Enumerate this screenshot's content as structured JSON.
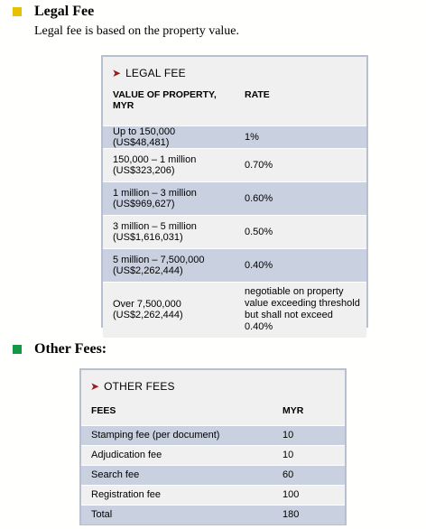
{
  "legal_section": {
    "heading": "Legal Fee",
    "bullet_color": "#e8c000",
    "intro": "Legal fee is based on the property value.",
    "table": {
      "title": "LEGAL FEE",
      "col1_header": "VALUE OF PROPERTY, MYR",
      "col2_header": "RATE",
      "rows": [
        {
          "value": "Up to 150,000 (US$48,481)",
          "rate": "1%"
        },
        {
          "value": "150,000 – 1 million (US$323,206)",
          "rate": "0.70%"
        },
        {
          "value": "1 million – 3 million (US$969,627)",
          "rate": "0.60%"
        },
        {
          "value": "3 million – 5 million (US$1,616,031)",
          "rate": "0.50%"
        },
        {
          "value": "5 million – 7,500,000 (US$2,262,444)",
          "rate": "0.40%"
        },
        {
          "value": "Over 7,500,000 (US$2,262,444)",
          "rate": "negotiable on property value exceeding threshold but shall not exceed 0.40%"
        }
      ]
    }
  },
  "other_section": {
    "heading": "Other Fees:",
    "bullet_color": "#119944",
    "table": {
      "title": "OTHER FEES",
      "col1_header": "FEES",
      "col2_header": "MYR",
      "rows": [
        {
          "fee": "Stamping fee (per document)",
          "amount": "10"
        },
        {
          "fee": "Adjudication fee",
          "amount": "10"
        },
        {
          "fee": "Search fee",
          "amount": "60"
        },
        {
          "fee": "Registration fee",
          "amount": "100"
        },
        {
          "fee": "Total",
          "amount": "180"
        }
      ]
    }
  },
  "colors": {
    "arrow": "#9b1c1c",
    "row_shade": "#c9d1e0",
    "box_background": "#f0f0f0",
    "box_border": "#b8c0d0"
  }
}
